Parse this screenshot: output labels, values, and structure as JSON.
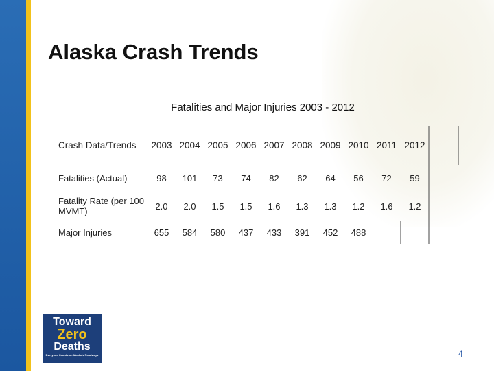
{
  "title": "Alaska Crash Trends",
  "subtitle": "Fatalities and Major Injuries 2003 - 2012",
  "table": {
    "header": [
      "Crash Data/Trends",
      "2003",
      "2004",
      "2005",
      "2006",
      "2007",
      "2008",
      "2009",
      "2010",
      "2011",
      "2012"
    ],
    "rows": [
      [
        "Fatalities (Actual)",
        "98",
        "101",
        "73",
        "74",
        "82",
        "62",
        "64",
        "56",
        "72",
        "59"
      ],
      [
        "Fatality Rate (per 100 MVMT)",
        "2.0",
        "2.0",
        "1.5",
        "1.5",
        "1.6",
        "1.3",
        "1.3",
        "1.2",
        "1.6",
        "1.2"
      ],
      [
        "Major Injuries",
        "655",
        "584",
        "580",
        "437",
        "433",
        "391",
        "452",
        "488"
      ]
    ]
  },
  "logo": {
    "line1": "Toward",
    "line2": "Zero",
    "line3": "Deaths",
    "tagline": "Everyone Counts on Alaska's Roadways"
  },
  "page_number": "4"
}
